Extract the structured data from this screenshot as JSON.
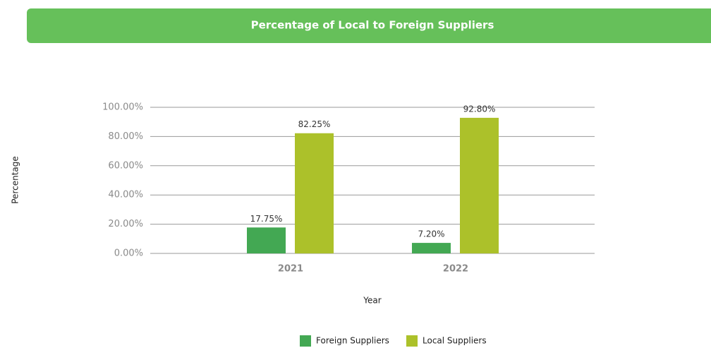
{
  "chart_data": {
    "type": "bar",
    "title": "Percentage of Local to Foreign Suppliers",
    "x_label": "Year",
    "y_label": "Percentage",
    "categories": [
      "2021",
      "2022"
    ],
    "series": [
      {
        "name": "Foreign Suppliers",
        "color": "#43a853",
        "values": [
          17.75,
          7.2
        ],
        "value_labels": [
          "17.75%",
          "7.20%"
        ]
      },
      {
        "name": "Local Suppliers",
        "color": "#acc12a",
        "values": [
          82.25,
          92.8
        ],
        "value_labels": [
          "82.25%",
          "92.80%"
        ]
      }
    ],
    "ylim": [
      0,
      100
    ],
    "yticks": [
      {
        "value": 0,
        "label": "0.00%"
      },
      {
        "value": 20,
        "label": "20.00%"
      },
      {
        "value": 40,
        "label": "40.00%"
      },
      {
        "value": 60,
        "label": "60.00%"
      },
      {
        "value": 80,
        "label": "80.00%"
      },
      {
        "value": 100,
        "label": "100.00%"
      }
    ],
    "grid": true,
    "legend": "bottom"
  }
}
